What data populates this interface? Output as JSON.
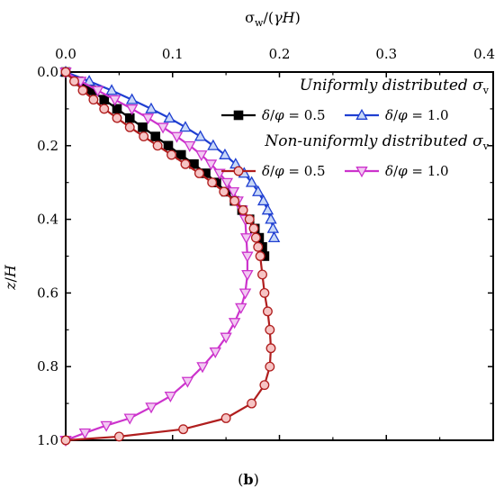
{
  "chart_data": {
    "type": "line",
    "x_title": {
      "base": "σ",
      "sub": "w",
      "tail": "/(",
      "gamma": "γ",
      "H": "H",
      "close": ")"
    },
    "y_title": {
      "z": "z",
      "slash": "/",
      "H": "H"
    },
    "panel_label": {
      "open": "(",
      "letter": "b",
      "close": ")"
    },
    "xlim": [
      0,
      0.4
    ],
    "ylim": [
      1.0,
      0.0
    ],
    "x_axis_position": "top",
    "y_inverted": true,
    "x_ticks": [
      "0.0",
      "0.1",
      "0.2",
      "0.3",
      "0.4"
    ],
    "y_ticks": [
      "0.0",
      "0.2",
      "0.4",
      "0.6",
      "0.8",
      "1.0"
    ],
    "legend": {
      "placement": "top-right",
      "groups": [
        {
          "heading": "Uniformly distributed ",
          "sym": "σ",
          "sub": "v",
          "items": [
            0,
            1
          ]
        },
        {
          "heading": "Non-uniformly distributed ",
          "sym": "σ",
          "sub": "v",
          "items": [
            2,
            3
          ]
        }
      ],
      "label_parts": {
        "delta": "δ",
        "slash": "/",
        "phi": "φ"
      }
    },
    "series": [
      {
        "group": "Uniformly distributed",
        "value_label": " = 0.5",
        "color": "#000000",
        "marker": "square-filled",
        "x": [
          0.0,
          0.012,
          0.024,
          0.036,
          0.048,
          0.06,
          0.072,
          0.084,
          0.096,
          0.108,
          0.12,
          0.131,
          0.141,
          0.15,
          0.158,
          0.165,
          0.172,
          0.177,
          0.181,
          0.184,
          0.186
        ],
        "y": [
          0.0,
          0.025,
          0.05,
          0.075,
          0.1,
          0.125,
          0.15,
          0.175,
          0.2,
          0.225,
          0.25,
          0.275,
          0.3,
          0.325,
          0.35,
          0.375,
          0.4,
          0.425,
          0.45,
          0.475,
          0.5
        ]
      },
      {
        "group": "Uniformly distributed",
        "value_label": " = 1.0",
        "color": "#1f3fd1",
        "marker": "triangle-up-open",
        "x": [
          0.0,
          0.022,
          0.043,
          0.062,
          0.08,
          0.097,
          0.112,
          0.126,
          0.138,
          0.149,
          0.159,
          0.167,
          0.174,
          0.18,
          0.185,
          0.189,
          0.192,
          0.194,
          0.195
        ],
        "y": [
          0.0,
          0.025,
          0.05,
          0.075,
          0.1,
          0.125,
          0.15,
          0.175,
          0.2,
          0.225,
          0.25,
          0.275,
          0.3,
          0.325,
          0.35,
          0.375,
          0.4,
          0.425,
          0.45
        ]
      },
      {
        "group": "Non-uniformly distributed",
        "value_label": " = 0.5",
        "color": "#b01e1e",
        "marker": "circle-open",
        "x": [
          0.0,
          0.008,
          0.016,
          0.026,
          0.036,
          0.048,
          0.06,
          0.073,
          0.086,
          0.099,
          0.112,
          0.125,
          0.137,
          0.148,
          0.158,
          0.166,
          0.172,
          0.176,
          0.178,
          0.18,
          0.182,
          0.184,
          0.186,
          0.189,
          0.191,
          0.192,
          0.191,
          0.186,
          0.174,
          0.15,
          0.11,
          0.05,
          0.0
        ],
        "y": [
          0.0,
          0.025,
          0.05,
          0.075,
          0.1,
          0.125,
          0.15,
          0.175,
          0.2,
          0.225,
          0.25,
          0.275,
          0.3,
          0.325,
          0.35,
          0.375,
          0.4,
          0.425,
          0.45,
          0.475,
          0.5,
          0.55,
          0.6,
          0.65,
          0.7,
          0.75,
          0.8,
          0.85,
          0.9,
          0.94,
          0.97,
          0.99,
          1.0
        ]
      },
      {
        "group": "Non-uniformly distributed",
        "value_label": " = 1.0",
        "color": "#cc33cc",
        "marker": "triangle-down-open",
        "x": [
          0.0,
          0.014,
          0.03,
          0.046,
          0.062,
          0.077,
          0.091,
          0.104,
          0.116,
          0.127,
          0.136,
          0.144,
          0.151,
          0.157,
          0.161,
          0.165,
          0.168,
          0.169,
          0.17,
          0.17,
          0.168,
          0.164,
          0.158,
          0.15,
          0.14,
          0.128,
          0.114,
          0.098,
          0.08,
          0.06,
          0.038,
          0.018,
          0.0
        ],
        "y": [
          0.0,
          0.025,
          0.05,
          0.075,
          0.1,
          0.125,
          0.15,
          0.175,
          0.2,
          0.225,
          0.25,
          0.275,
          0.3,
          0.325,
          0.35,
          0.375,
          0.4,
          0.45,
          0.5,
          0.55,
          0.6,
          0.64,
          0.68,
          0.72,
          0.76,
          0.8,
          0.84,
          0.88,
          0.91,
          0.94,
          0.96,
          0.98,
          1.0
        ]
      }
    ]
  }
}
